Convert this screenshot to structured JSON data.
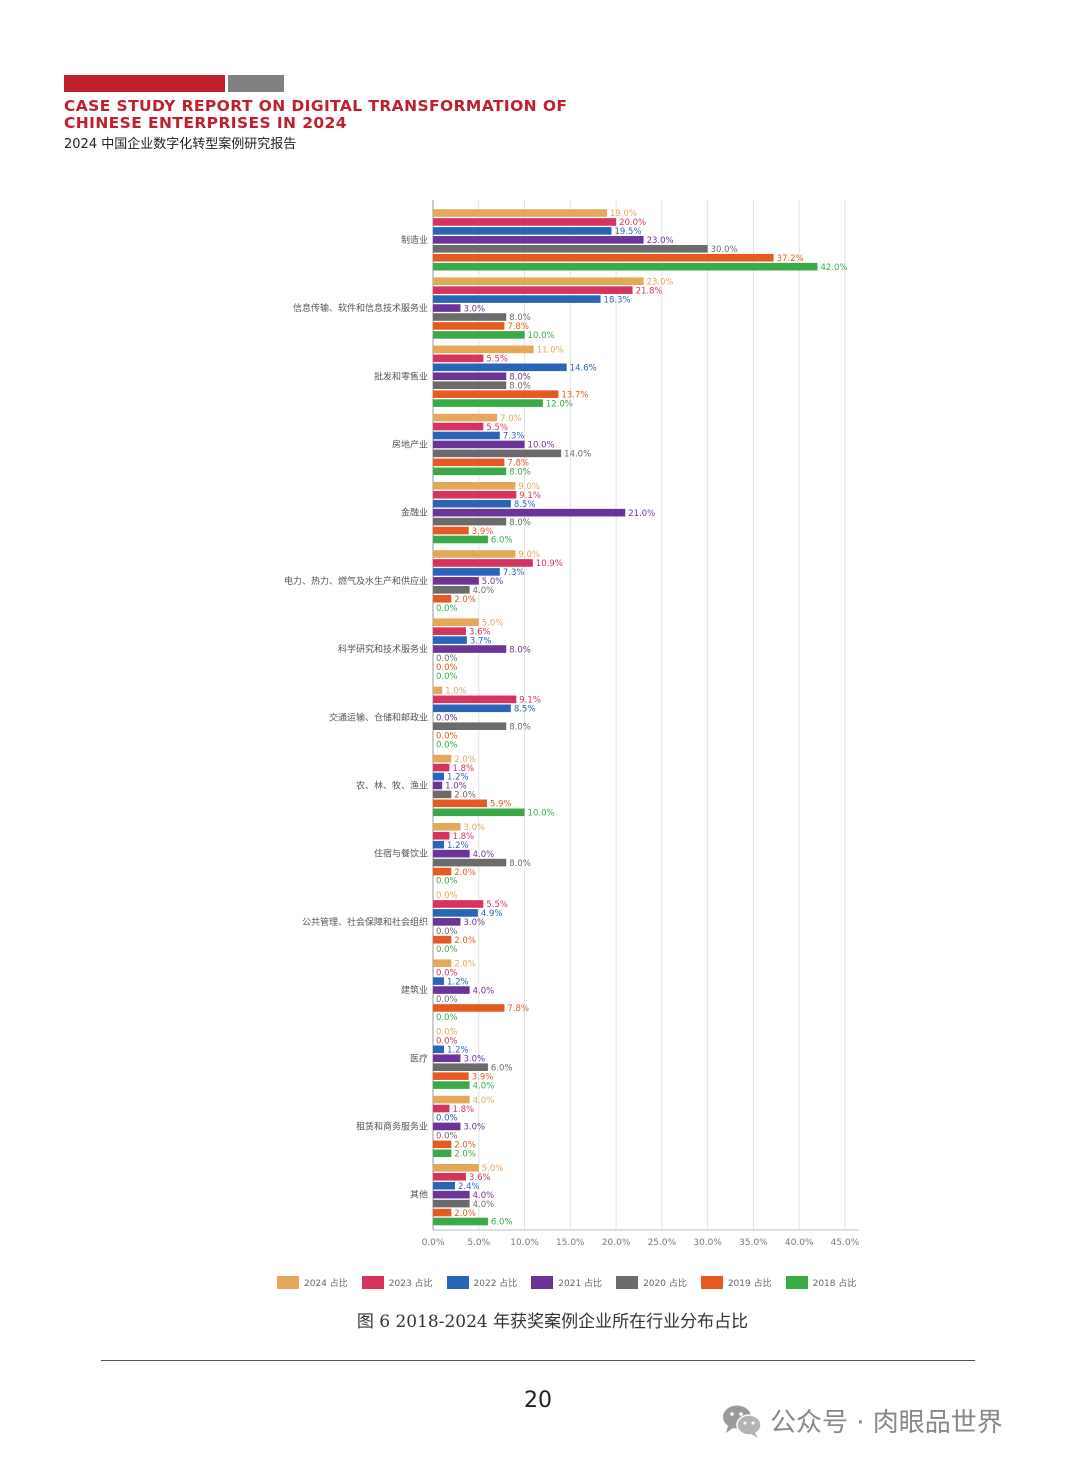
{
  "header": {
    "title_en_line1": "CASE STUDY REPORT ON DIGITAL TRANSFORMATION OF",
    "title_en_line2": "CHINESE ENTERPRISES IN 2024",
    "title_cn": "2024 中国企业数字化转型案例研究报告",
    "accent_color": "#c0202d",
    "gray_color": "#808080"
  },
  "chart_data": {
    "type": "bar",
    "orientation": "horizontal",
    "title": "",
    "xlabel": "",
    "ylabel": "",
    "xlim": [
      0,
      45
    ],
    "x_ticks": [
      "0.0%",
      "5.0%",
      "10.0%",
      "15.0%",
      "20.0%",
      "25.0%",
      "30.0%",
      "35.0%",
      "40.0%",
      "45.0%"
    ],
    "grid": "vertical",
    "legend_position": "bottom",
    "categories": [
      "制造业",
      "信息传输、软件和信息技术服务业",
      "批发和零售业",
      "房地产业",
      "金融业",
      "电力、热力、燃气及水生产和供应业",
      "科学研究和技术服务业",
      "交通运输、仓储和邮政业",
      "农、林、牧、渔业",
      "住宿与餐饮业",
      "公共管理、社会保障和社会组织",
      "建筑业",
      "医疗",
      "租赁和商务服务业",
      "其他"
    ],
    "series": [
      {
        "name": "2024 占比",
        "color": "#e3a85a",
        "label_color": "#e3a85a",
        "values": [
          19.0,
          23.0,
          11.0,
          7.0,
          9.0,
          9.0,
          5.0,
          1.0,
          2.0,
          3.0,
          0.0,
          2.0,
          0.0,
          4.0,
          5.0
        ],
        "labels": [
          "19.0%",
          "23.0%",
          "11.0%",
          "7.0%",
          "9.0%",
          "9.0%",
          "5.0%",
          "1.0%",
          "2.0%",
          "3.0%",
          "0.0%",
          "2.0%",
          "0.0%",
          "4.0%",
          "5.0%"
        ]
      },
      {
        "name": "2023 占比",
        "color": "#d6335f",
        "label_color": "#d6335f",
        "values": [
          20.0,
          21.8,
          5.5,
          5.5,
          9.1,
          10.9,
          3.6,
          9.1,
          1.8,
          1.8,
          5.5,
          0.0,
          0.0,
          1.8,
          3.6
        ],
        "labels": [
          "20.0%",
          "21.8%",
          "5.5%",
          "5.5%",
          "9.1%",
          "10.9%",
          "3.6%",
          "9.1%",
          "1.8%",
          "1.8%",
          "5.5%",
          "0.0%",
          "0.0%",
          "1.8%",
          "3.6%"
        ]
      },
      {
        "name": "2022 占比",
        "color": "#2a64b6",
        "label_color": "#2a64b6",
        "values": [
          19.5,
          18.3,
          14.6,
          7.3,
          8.5,
          7.3,
          3.7,
          8.5,
          1.2,
          1.2,
          4.9,
          1.2,
          1.2,
          0.0,
          2.4
        ],
        "labels": [
          "19.5%",
          "18.3%",
          "14.6%",
          "7.3%",
          "8.5%",
          "7.3%",
          "3.7%",
          "8.5%",
          "1.2%",
          "1.2%",
          "4.9%",
          "1.2%",
          "1.2%",
          "0.0%",
          "2.4%"
        ]
      },
      {
        "name": "2021 占比",
        "color": "#6b3499",
        "label_color": "#6b3499",
        "values": [
          23.0,
          3.0,
          8.0,
          10.0,
          21.0,
          5.0,
          8.0,
          0.0,
          1.0,
          4.0,
          3.0,
          4.0,
          3.0,
          3.0,
          4.0
        ],
        "labels": [
          "23.0%",
          "3.0%",
          "8.0%",
          "10.0%",
          "21.0%",
          "5.0%",
          "8.0%",
          "0.0%",
          "1.0%",
          "4.0%",
          "3.0%",
          "4.0%",
          "3.0%",
          "3.0%",
          "4.0%"
        ]
      },
      {
        "name": "2020 占比",
        "color": "#6b6b6b",
        "label_color": "#6b6b6b",
        "values": [
          30.0,
          8.0,
          8.0,
          14.0,
          8.0,
          4.0,
          0.0,
          8.0,
          2.0,
          8.0,
          0.0,
          0.0,
          6.0,
          0.0,
          4.0
        ],
        "labels": [
          "30.0%",
          "8.0%",
          "8.0%",
          "14.0%",
          "8.0%",
          "4.0%",
          "0.0%",
          "8.0%",
          "2.0%",
          "8.0%",
          "0.0%",
          "0.0%",
          "6.0%",
          "0.0%",
          "4.0%"
        ]
      },
      {
        "name": "2019 占比",
        "color": "#e55a22",
        "label_color": "#e55a22",
        "values": [
          37.2,
          7.8,
          13.7,
          7.8,
          3.9,
          2.0,
          0.0,
          0.0,
          5.9,
          2.0,
          2.0,
          7.8,
          3.9,
          2.0,
          2.0
        ],
        "labels": [
          "37.2%",
          "7.8%",
          "13.7%",
          "7.8%",
          "3.9%",
          "2.0%",
          "0.0%",
          "0.0%",
          "5.9%",
          "2.0%",
          "2.0%",
          "7.8%",
          "3.9%",
          "2.0%",
          "2.0%"
        ]
      },
      {
        "name": "2018 占比",
        "color": "#3aaa48",
        "label_color": "#3aaa48",
        "values": [
          42.0,
          10.0,
          12.0,
          8.0,
          6.0,
          0.0,
          0.0,
          0.0,
          10.0,
          0.0,
          0.0,
          0.0,
          4.0,
          2.0,
          6.0
        ],
        "labels": [
          "42.0%",
          "10.0%",
          "12.0%",
          "8.0%",
          "6.0%",
          "0.0%",
          "0.0%",
          "0.0%",
          "10.0%",
          "0.0%",
          "0.0%",
          "0.0%",
          "4.0%",
          "2.0%",
          "6.0%"
        ]
      }
    ]
  },
  "caption": "图 6  2018-2024 年获奖案例企业所在行业分布占比",
  "page_number": "20",
  "watermark": {
    "text": "公众号 · 肉眼品世界",
    "icon": "wechat-icon"
  }
}
